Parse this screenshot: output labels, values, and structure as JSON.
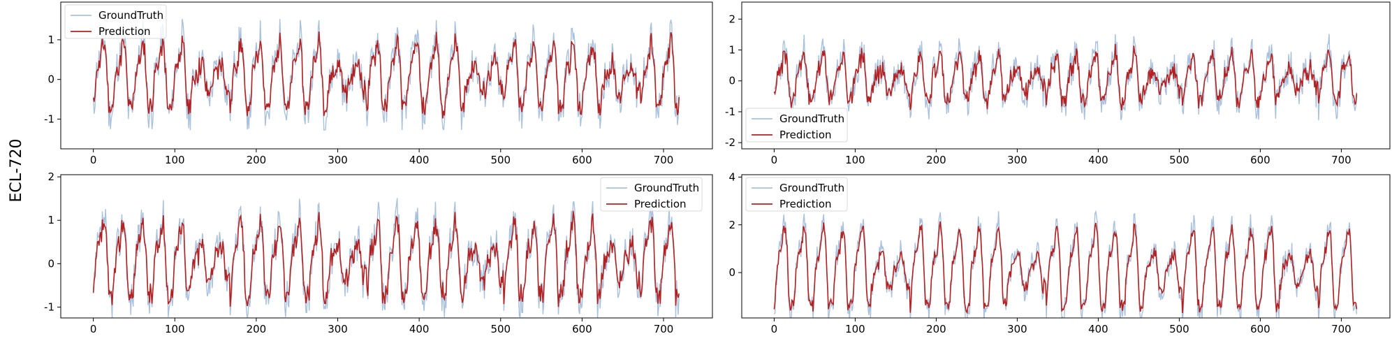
{
  "figure": {
    "row_label": "ECL-720"
  },
  "colors": {
    "ground_truth": "#a9c1dc",
    "prediction": "#b22222",
    "axes": "#000000"
  },
  "chart_data": [
    {
      "type": "line",
      "panel": "top-left",
      "xlim": [
        -40,
        760
      ],
      "ylim": [
        -1.75,
        1.95
      ],
      "xticks": [
        0,
        100,
        200,
        300,
        400,
        500,
        600,
        700
      ],
      "yticks": [
        -1,
        0,
        1
      ],
      "legend_location": "upper left",
      "series": [
        {
          "name": "GroundTruth",
          "amplitude": 1.35,
          "period": 24,
          "seed": 11,
          "noise": 0.28
        },
        {
          "name": "Prediction",
          "amplitude": 1.15,
          "period": 24,
          "seed": 11,
          "noise": 0.12
        }
      ],
      "points": 720
    },
    {
      "type": "line",
      "panel": "top-right",
      "xlim": [
        -40,
        760
      ],
      "ylim": [
        -2.2,
        2.55
      ],
      "xticks": [
        0,
        100,
        200,
        300,
        400,
        500,
        600,
        700
      ],
      "yticks": [
        -2,
        -1,
        0,
        1,
        2
      ],
      "legend_location": "lower left",
      "series": [
        {
          "name": "GroundTruth",
          "amplitude": 1.25,
          "period": 24,
          "seed": 23,
          "noise": 0.35
        },
        {
          "name": "Prediction",
          "amplitude": 1.05,
          "period": 24,
          "seed": 23,
          "noise": 0.18
        }
      ],
      "points": 720
    },
    {
      "type": "line",
      "panel": "bottom-left",
      "xlim": [
        -40,
        760
      ],
      "ylim": [
        -1.25,
        2.05
      ],
      "xticks": [
        0,
        100,
        200,
        300,
        400,
        500,
        600,
        700
      ],
      "yticks": [
        -1,
        0,
        1,
        2
      ],
      "legend_location": "upper right",
      "series": [
        {
          "name": "GroundTruth",
          "amplitude": 1.35,
          "period": 24,
          "seed": 37,
          "noise": 0.25
        },
        {
          "name": "Prediction",
          "amplitude": 1.2,
          "period": 24,
          "seed": 37,
          "noise": 0.12
        }
      ],
      "points": 720
    },
    {
      "type": "line",
      "panel": "bottom-right",
      "xlim": [
        -40,
        760
      ],
      "ylim": [
        -1.9,
        4.1
      ],
      "xticks": [
        0,
        100,
        200,
        300,
        400,
        500,
        600,
        700
      ],
      "yticks": [
        0,
        2,
        4
      ],
      "legend_location": "upper left",
      "series": [
        {
          "name": "GroundTruth",
          "amplitude": 2.6,
          "period": 24,
          "seed": 51,
          "noise": 0.35
        },
        {
          "name": "Prediction",
          "amplitude": 2.3,
          "period": 24,
          "seed": 51,
          "noise": 0.15
        }
      ],
      "points": 720
    }
  ]
}
